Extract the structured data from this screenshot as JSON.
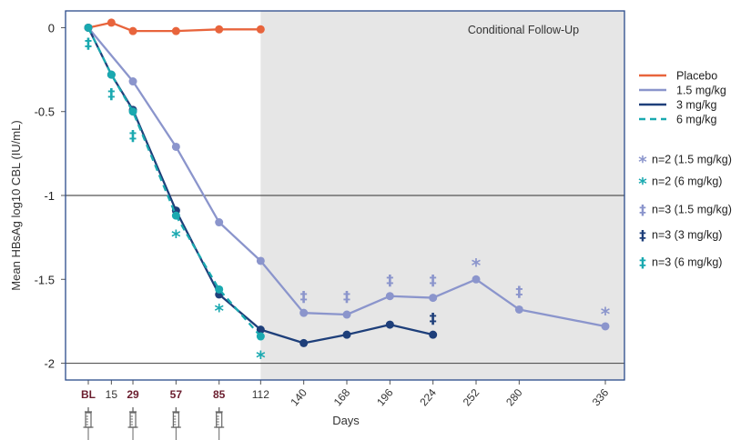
{
  "chart_data": {
    "type": "line",
    "xlabel": "Days",
    "ylabel": "Mean HBsAg log10 CBL (IU/mL)",
    "ylim": [
      -2.1,
      0.1
    ],
    "yticks": [
      0,
      -0.5,
      -1,
      -1.5,
      -2
    ],
    "ytick_labels": [
      "0",
      "-0.5",
      "-1",
      "-1.5",
      "-2"
    ],
    "reference_lines_y": [
      -1,
      -2
    ],
    "xticks": [
      {
        "label": "BL",
        "day": 0,
        "dosed": true
      },
      {
        "label": "15",
        "day": 15,
        "dosed": false
      },
      {
        "label": "29",
        "day": 29,
        "dosed": true
      },
      {
        "label": "57",
        "day": 57,
        "dosed": true
      },
      {
        "label": "85",
        "day": 85,
        "dosed": true
      },
      {
        "label": "112",
        "day": 112,
        "dosed": false
      },
      {
        "label": "140",
        "day": 140,
        "dosed": false
      },
      {
        "label": "168",
        "day": 168,
        "dosed": false
      },
      {
        "label": "196",
        "day": 196,
        "dosed": false
      },
      {
        "label": "224",
        "day": 224,
        "dosed": false
      },
      {
        "label": "252",
        "day": 252,
        "dosed": false
      },
      {
        "label": "280",
        "day": 280,
        "dosed": false
      },
      {
        "label": "336",
        "day": 336,
        "dosed": false
      }
    ],
    "dosing_days": [
      0,
      29,
      57,
      85
    ],
    "shaded_region": {
      "label": "Conditional Follow-Up",
      "from_day": 112
    },
    "series": [
      {
        "name": "Placebo",
        "color": "#e8643c",
        "style": "solid",
        "x": [
          0,
          15,
          29,
          57,
          85,
          112
        ],
        "y": [
          0,
          0.03,
          -0.02,
          -0.02,
          -0.01,
          -0.01
        ]
      },
      {
        "name": "1.5 mg/kg",
        "color": "#8b95cc",
        "style": "solid",
        "x": [
          0,
          29,
          57,
          85,
          112,
          140,
          168,
          196,
          224,
          252,
          280,
          336
        ],
        "y": [
          0,
          -0.32,
          -0.71,
          -1.16,
          -1.39,
          -1.7,
          -1.71,
          -1.6,
          -1.61,
          -1.5,
          -1.68,
          -1.78
        ]
      },
      {
        "name": "3 mg/kg",
        "color": "#1e3f7a",
        "style": "solid",
        "x": [
          0,
          15,
          29,
          57,
          85,
          112,
          140,
          168,
          196,
          224
        ],
        "y": [
          0,
          -0.28,
          -0.49,
          -1.09,
          -1.59,
          -1.8,
          -1.88,
          -1.83,
          -1.77,
          -1.83
        ]
      },
      {
        "name": "6 mg/kg",
        "color": "#1aa9b0",
        "style": "dashed",
        "x": [
          0,
          15,
          29,
          57,
          85,
          112
        ],
        "y": [
          0,
          -0.28,
          -0.5,
          -1.12,
          -1.56,
          -1.84
        ]
      }
    ],
    "annotations": [
      {
        "symbol": "*",
        "series": "1.5 mg/kg",
        "color": "#8b95cc",
        "x": 252,
        "y": -1.39
      },
      {
        "symbol": "*",
        "series": "1.5 mg/kg",
        "color": "#8b95cc",
        "x": 336,
        "y": -1.68
      },
      {
        "symbol": "*",
        "series": "6 mg/kg",
        "color": "#1aa9b0",
        "x": 57,
        "y": -1.22
      },
      {
        "symbol": "*",
        "series": "6 mg/kg",
        "color": "#1aa9b0",
        "x": 85,
        "y": -1.66
      },
      {
        "symbol": "*",
        "series": "6 mg/kg",
        "color": "#1aa9b0",
        "x": 112,
        "y": -1.94
      },
      {
        "symbol": "‡",
        "series": "1.5 mg/kg",
        "color": "#8b95cc",
        "x": 140,
        "y": -1.6
      },
      {
        "symbol": "‡",
        "series": "1.5 mg/kg",
        "color": "#8b95cc",
        "x": 168,
        "y": -1.6
      },
      {
        "symbol": "‡",
        "series": "1.5 mg/kg",
        "color": "#8b95cc",
        "x": 196,
        "y": -1.5
      },
      {
        "symbol": "‡",
        "series": "1.5 mg/kg",
        "color": "#8b95cc",
        "x": 224,
        "y": -1.5
      },
      {
        "symbol": "‡",
        "series": "1.5 mg/kg",
        "color": "#8b95cc",
        "x": 280,
        "y": -1.57
      },
      {
        "symbol": "‡",
        "series": "3 mg/kg",
        "color": "#1e3f7a",
        "x": 224,
        "y": -1.73
      },
      {
        "symbol": "‡",
        "series": "6 mg/kg",
        "color": "#1aa9b0",
        "x": 0,
        "y": -0.09
      },
      {
        "symbol": "‡",
        "series": "6 mg/kg",
        "color": "#1aa9b0",
        "x": 15,
        "y": -0.39
      },
      {
        "symbol": "‡",
        "series": "6 mg/kg",
        "color": "#1aa9b0",
        "x": 29,
        "y": -0.64
      }
    ],
    "legend": {
      "placement": "right",
      "lines": [
        {
          "label": "Placebo",
          "color": "#e8643c",
          "style": "solid"
        },
        {
          "label": "1.5 mg/kg",
          "color": "#8b95cc",
          "style": "solid"
        },
        {
          "label": "3 mg/kg",
          "color": "#1e3f7a",
          "style": "solid"
        },
        {
          "label": "6 mg/kg",
          "color": "#1aa9b0",
          "style": "dashed"
        }
      ],
      "symbols": [
        {
          "symbol": "*",
          "label": "n=2 (1.5 mg/kg)",
          "color": "#8b95cc"
        },
        {
          "symbol": "*",
          "label": "n=2 (6 mg/kg)",
          "color": "#1aa9b0"
        },
        {
          "symbol": "‡",
          "label": "n=3 (1.5 mg/kg)",
          "color": "#8b95cc"
        },
        {
          "symbol": "‡",
          "label": "n=3 (3 mg/kg)",
          "color": "#1e3f7a"
        },
        {
          "symbol": "‡",
          "label": "n=3 (6 mg/kg)",
          "color": "#1aa9b0"
        }
      ]
    },
    "dose_icon": "syringe-icon",
    "grid": false
  }
}
